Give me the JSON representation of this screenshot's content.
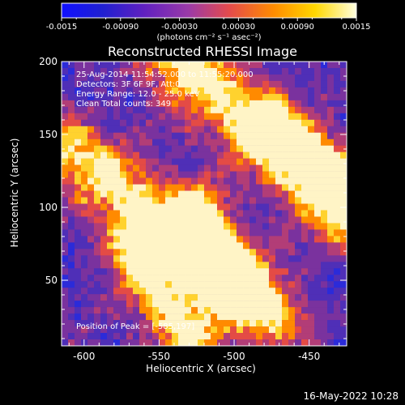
{
  "chart_data": {
    "type": "heatmap",
    "title": "Reconstructed RHESSI Image",
    "xlabel": "Heliocentric X (arcsec)",
    "ylabel": "Heliocentric Y (arcsec)",
    "x_ticks": [
      "-600",
      "-550",
      "-500",
      "-450"
    ],
    "y_ticks": [
      "50",
      "100",
      "150",
      "200"
    ],
    "xlim": [
      -615,
      -425
    ],
    "ylim": [
      5,
      200
    ],
    "grid": false,
    "colorbar": {
      "range": [
        -0.0015,
        0.0015
      ],
      "tick_labels": [
        "-0.0015",
        "-0.00090",
        "-0.00030",
        "0.00030",
        "0.00090",
        "0.0015"
      ],
      "units": "(photons cm⁻² s⁻¹ asec⁻²)",
      "colors": [
        "#1010ff",
        "#2020d0",
        "#6020c0",
        "#9a3aa8",
        "#e54b4b",
        "#ff8c00",
        "#ffd700",
        "#ffffe0"
      ]
    },
    "annotations": [
      "25-Aug-2014 11:54:52.000 to 11:55:20.000",
      "Detectors: 3F 6F 9F, Att:0",
      "Energy Range: 12.0 - 25.0 keV",
      "Clean    Total counts: 349",
      "Position of Peak = [-585,197]"
    ],
    "footer": "16-May-2022 10:28"
  }
}
